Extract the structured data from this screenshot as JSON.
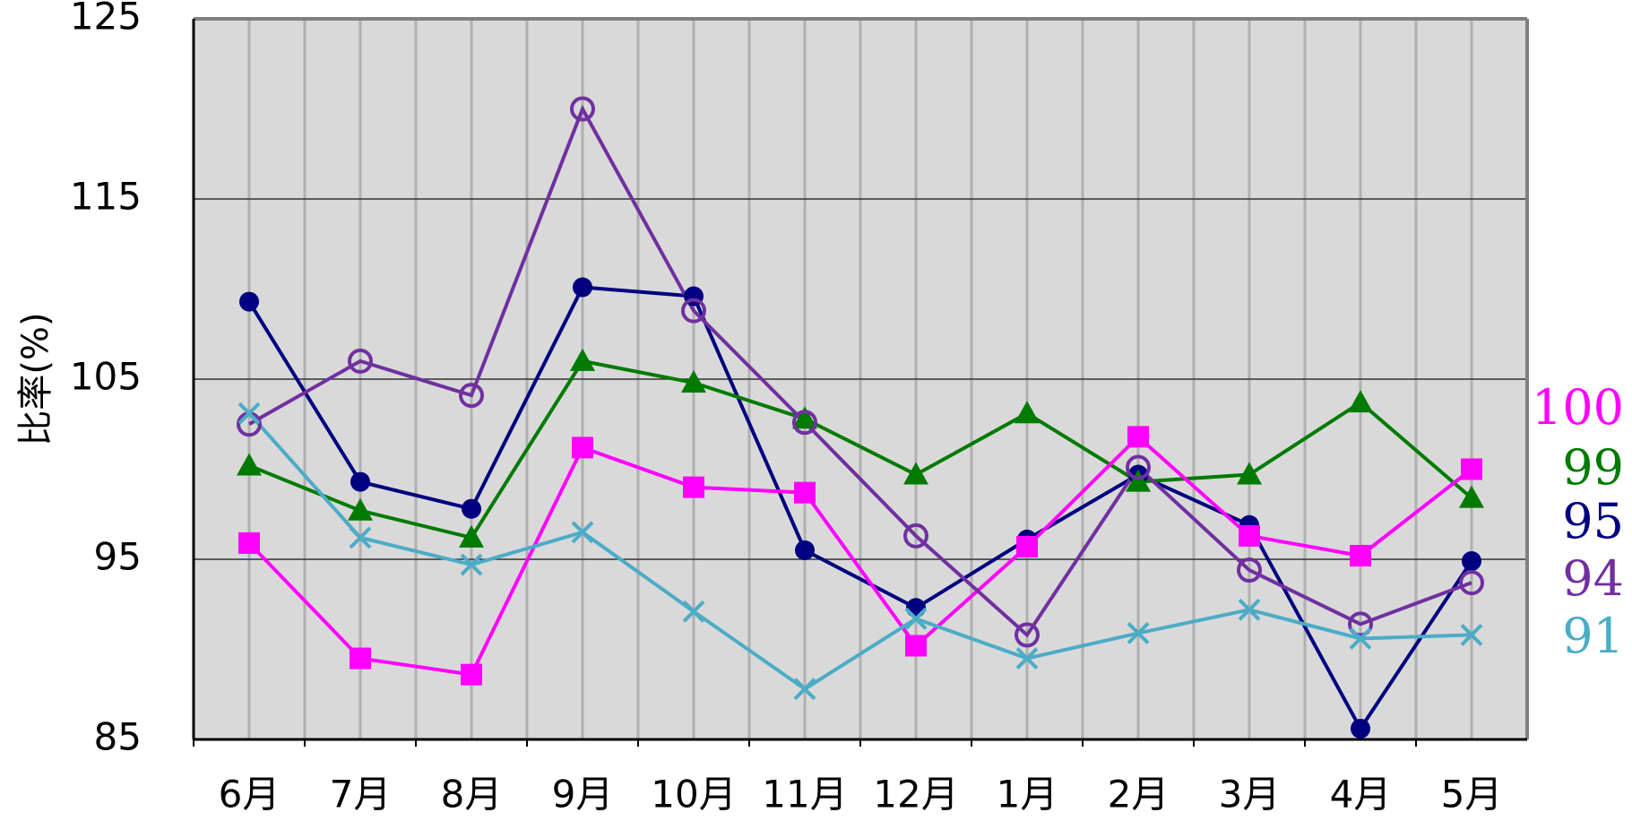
{
  "chart_data": {
    "type": "line",
    "y_label": "比率(%)",
    "categories": [
      "6月",
      "7月",
      "8月",
      "9月",
      "10月",
      "11月",
      "12月",
      "1月",
      "2月",
      "3月",
      "4月",
      "5月"
    ],
    "ylim": [
      85,
      125
    ],
    "yticks": [
      85,
      95,
      105,
      115,
      125
    ],
    "grid": true,
    "plot_background": "#d9d9d9",
    "series": [
      {
        "color": "#000080",
        "marker": "circle",
        "end_label": 95,
        "values": [
          109.3,
          99.3,
          97.8,
          110.1,
          109.6,
          95.5,
          92.3,
          96.1,
          99.7,
          96.9,
          85.6,
          94.9
        ]
      },
      {
        "color": "#007a00",
        "marker": "triangle",
        "end_label": 99,
        "values": [
          100.2,
          97.7,
          96.2,
          106.0,
          104.8,
          102.8,
          99.7,
          103.1,
          99.3,
          99.7,
          103.7,
          98.4
        ]
      },
      {
        "color": "#ff00ff",
        "marker": "square",
        "end_label": 100,
        "values": [
          95.9,
          89.5,
          88.6,
          101.2,
          99.0,
          98.7,
          90.2,
          95.7,
          101.8,
          96.3,
          95.2,
          100.0
        ]
      },
      {
        "color": "#7030a0",
        "marker": "open-circle",
        "end_label": 94,
        "values": [
          102.5,
          106.0,
          104.1,
          120.0,
          108.8,
          102.6,
          96.3,
          90.8,
          100.1,
          94.4,
          91.4,
          93.7
        ]
      },
      {
        "color": "#4bacc6",
        "marker": "x",
        "end_label": 91,
        "values": [
          103.1,
          96.2,
          94.7,
          96.5,
          92.1,
          87.8,
          91.7,
          89.5,
          90.9,
          92.2,
          90.6,
          90.8
        ]
      }
    ]
  }
}
